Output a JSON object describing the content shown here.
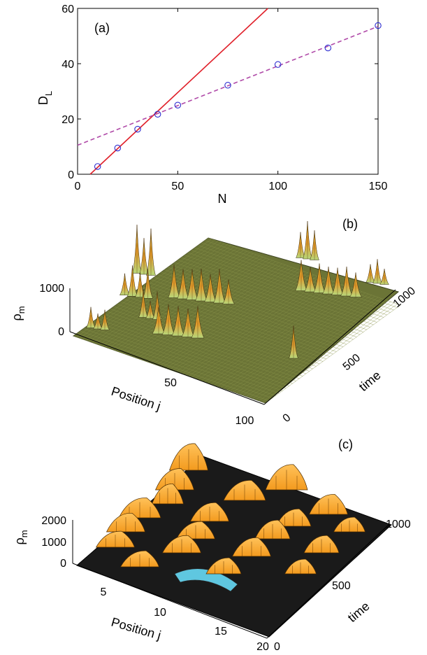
{
  "chart_data": [
    {
      "type": "scatter",
      "panel_label": "(a)",
      "xlabel": "N",
      "ylabel": "D",
      "ylabel_sub": "L",
      "xlim": [
        0,
        150
      ],
      "ylim": [
        0,
        60
      ],
      "xticks": [
        "0",
        "50",
        "100",
        "150"
      ],
      "yticks": [
        "0",
        "20",
        "40",
        "60"
      ],
      "grid": false,
      "points": {
        "x": [
          10,
          20,
          30,
          40,
          50,
          75,
          100,
          125,
          150
        ],
        "y": [
          2.8,
          9.5,
          16.3,
          21.7,
          25.0,
          32.2,
          39.7,
          45.7,
          53.8
        ],
        "marker": "circle",
        "color": "#2b2bd0"
      },
      "fits": [
        {
          "style": "solid",
          "color": "#e0202a",
          "x": [
            6.3,
            95
          ],
          "y": [
            0,
            60
          ]
        },
        {
          "style": "dashed",
          "color": "#b04aa8",
          "x": [
            0,
            150
          ],
          "y": [
            10.5,
            53.5
          ]
        }
      ]
    },
    {
      "type": "surface",
      "panel_label": "(b)",
      "zlabel": "ρ",
      "zlabel_sub": "m",
      "xlabel": "Position j",
      "ylabel": "time",
      "x_ticks": [
        "50",
        "100"
      ],
      "y_ticks": [
        "0",
        "500",
        "1000"
      ],
      "z_ticks": [
        "0",
        "1000"
      ]
    },
    {
      "type": "surface",
      "panel_label": "(c)",
      "zlabel": "ρ",
      "zlabel_sub": "m",
      "xlabel": "Position j",
      "ylabel": "time",
      "x_ticks": [
        "5",
        "10",
        "15",
        "20"
      ],
      "y_ticks": [
        "0",
        "500",
        "1000"
      ],
      "z_ticks": [
        "0",
        "1000",
        "2000"
      ]
    }
  ]
}
